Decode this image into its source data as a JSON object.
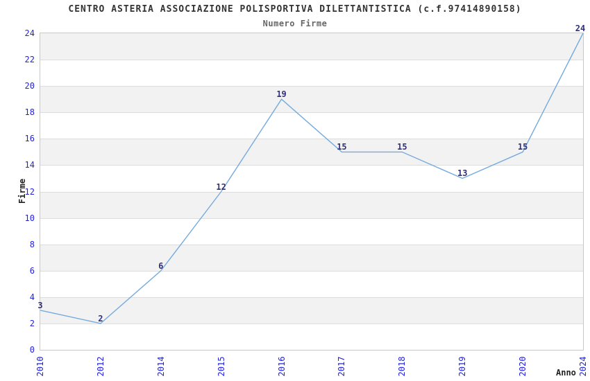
{
  "chart_data": {
    "type": "line",
    "title": "CENTRO ASTERIA ASSOCIAZIONE POLISPORTIVA DILETTANTISTICA (c.f.97414890158)",
    "subtitle": "Numero Firme",
    "xlabel": "Anno",
    "ylabel": "Firme",
    "categories": [
      "2010",
      "2012",
      "2014",
      "2015",
      "2016",
      "2017",
      "2018",
      "2019",
      "2020",
      "2024"
    ],
    "values": [
      3,
      2,
      6,
      12,
      19,
      15,
      15,
      13,
      15,
      24
    ],
    "ylim": [
      0,
      24
    ],
    "ytick_step": 2,
    "yticks": [
      0,
      2,
      4,
      6,
      8,
      10,
      12,
      14,
      16,
      18,
      20,
      22,
      24
    ],
    "grid": "horizontal-bands-alternating",
    "legend": "none",
    "point_labels_shown": true,
    "colors": {
      "line": "#74aade",
      "tick_label": "#2222dd",
      "data_label": "#31317a",
      "band_gray": "#f2f2f2",
      "band_white": "#ffffff",
      "grid_line": "#dcdcdc",
      "plot_border": "#c9c9c9",
      "title": "#333333",
      "subtitle": "#666666",
      "axis_label": "#222222"
    }
  }
}
